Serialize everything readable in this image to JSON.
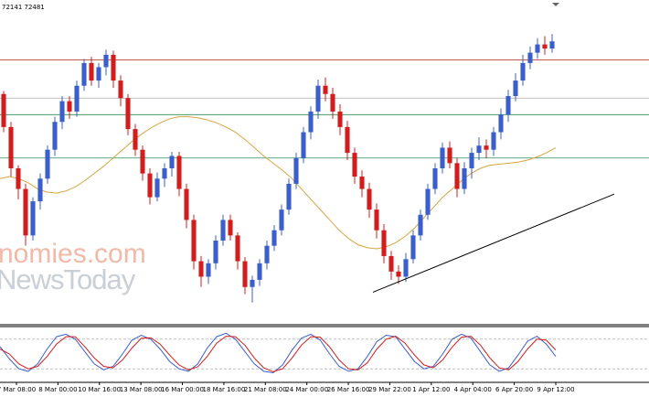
{
  "header_text": "72141 72481",
  "watermark": {
    "line1": "nomies.com",
    "line2": "NewsToday"
  },
  "colors": {
    "bull": "#3a5fcd",
    "bear": "#d41c1c",
    "ma": "#d9a441",
    "resistance": "#b22222",
    "support": "#2e8b57",
    "gray_level": "#a9a9a9",
    "trendline": "#000000",
    "stoch_main": "#3a5fcd",
    "stoch_signal": "#d41c1c"
  },
  "chart_data": {
    "type": "candlestick",
    "x_ticks": [
      "7 Mar 08:00",
      "8 Mar 00:00",
      "10 Mar 16:00",
      "13 Mar 08:00",
      "16 Mar 00:00",
      "18 Mar 16:00",
      "21 Mar 08:00",
      "24 Mar 00:00",
      "26 Mar 16:00",
      "29 Mar 22:00",
      "1 Apr 12:00",
      "4 Apr 04:00",
      "6 Apr 20:00",
      "9 Apr 12:00"
    ],
    "candles": [
      [
        232,
        200,
        235,
        195
      ],
      [
        200,
        160,
        205,
        152
      ],
      [
        160,
        140,
        163,
        130
      ],
      [
        140,
        95,
        145,
        85
      ],
      [
        95,
        128,
        132,
        90
      ],
      [
        128,
        150,
        155,
        120
      ],
      [
        150,
        178,
        182,
        145
      ],
      [
        178,
        205,
        210,
        172
      ],
      [
        205,
        225,
        230,
        198
      ],
      [
        225,
        215,
        230,
        208
      ],
      [
        215,
        240,
        245,
        210
      ],
      [
        240,
        262,
        266,
        235
      ],
      [
        262,
        245,
        268,
        240
      ],
      [
        245,
        258,
        262,
        238
      ],
      [
        258,
        270,
        275,
        250
      ],
      [
        270,
        245,
        274,
        238
      ],
      [
        245,
        228,
        250,
        220
      ],
      [
        228,
        198,
        232,
        192
      ],
      [
        198,
        178,
        203,
        172
      ],
      [
        178,
        155,
        182,
        148
      ],
      [
        155,
        132,
        160,
        125
      ],
      [
        132,
        150,
        156,
        128
      ],
      [
        150,
        160,
        165,
        142
      ],
      [
        160,
        172,
        176,
        152
      ],
      [
        172,
        140,
        176,
        133
      ],
      [
        140,
        110,
        145,
        102
      ],
      [
        110,
        70,
        115,
        62
      ],
      [
        70,
        55,
        75,
        45
      ],
      [
        55,
        68,
        72,
        48
      ],
      [
        68,
        90,
        95,
        62
      ],
      [
        90,
        110,
        115,
        85
      ],
      [
        110,
        95,
        115,
        90
      ],
      [
        95,
        70,
        98,
        62
      ],
      [
        70,
        45,
        74,
        38
      ],
      [
        45,
        52,
        56,
        30
      ],
      [
        52,
        68,
        72,
        46
      ],
      [
        68,
        85,
        90,
        62
      ],
      [
        85,
        100,
        105,
        80
      ],
      [
        100,
        120,
        125,
        95
      ],
      [
        120,
        145,
        150,
        115
      ],
      [
        145,
        170,
        175,
        140
      ],
      [
        170,
        195,
        200,
        165
      ],
      [
        195,
        215,
        220,
        188
      ],
      [
        215,
        240,
        246,
        208
      ],
      [
        240,
        232,
        248,
        225
      ],
      [
        232,
        215,
        238,
        208
      ],
      [
        215,
        200,
        222,
        192
      ],
      [
        200,
        175,
        206,
        168
      ],
      [
        175,
        152,
        180,
        145
      ],
      [
        152,
        140,
        158,
        132
      ],
      [
        140,
        120,
        146,
        112
      ],
      [
        120,
        100,
        126,
        92
      ],
      [
        100,
        75,
        106,
        68
      ],
      [
        75,
        60,
        80,
        52
      ],
      [
        60,
        55,
        66,
        48
      ],
      [
        55,
        72,
        78,
        50
      ],
      [
        72,
        95,
        100,
        68
      ],
      [
        95,
        115,
        120,
        90
      ],
      [
        115,
        140,
        145,
        110
      ],
      [
        140,
        160,
        165,
        135
      ],
      [
        160,
        180,
        185,
        155
      ],
      [
        180,
        165,
        186,
        160
      ],
      [
        165,
        140,
        170,
        132
      ],
      [
        140,
        160,
        166,
        135
      ],
      [
        160,
        175,
        180,
        150
      ],
      [
        175,
        182,
        190,
        168
      ],
      [
        182,
        178,
        188,
        170
      ],
      [
        178,
        195,
        200,
        172
      ],
      [
        195,
        212,
        218,
        188
      ],
      [
        212,
        230,
        236,
        205
      ],
      [
        230,
        245,
        252,
        225
      ],
      [
        245,
        262,
        270,
        240
      ],
      [
        262,
        272,
        278,
        256
      ],
      [
        272,
        280,
        286,
        266
      ],
      [
        280,
        276,
        288,
        270
      ],
      [
        276,
        283,
        290,
        272
      ]
    ],
    "moving_average": [
      150,
      152,
      150,
      146,
      140,
      137,
      136,
      138,
      142,
      148,
      155,
      162,
      170,
      178,
      186,
      193,
      199,
      204,
      208,
      210,
      210,
      209,
      207,
      204,
      200,
      195,
      188,
      180,
      172,
      165,
      158,
      150,
      140,
      130,
      120,
      110,
      100,
      92,
      86,
      83,
      82,
      84,
      88,
      94,
      102,
      112,
      122,
      132,
      140,
      148,
      155,
      160,
      163,
      164,
      165,
      166,
      168,
      171,
      175,
      180
    ],
    "levels": [
      {
        "value": 265,
        "color": "resistance"
      },
      {
        "value": 228,
        "color": "gray_level"
      },
      {
        "value": 212,
        "color": "support"
      },
      {
        "value": 170,
        "color": "support"
      }
    ],
    "trendline": [
      [
        0.0,
        40
      ],
      [
        1.0,
        135
      ]
    ],
    "ylim": [
      20,
      300
    ],
    "stochastic": {
      "main": [
        65,
        40,
        20,
        15,
        30,
        60,
        85,
        90,
        80,
        55,
        30,
        18,
        25,
        50,
        78,
        88,
        80,
        60,
        35,
        20,
        15,
        30,
        62,
        85,
        92,
        80,
        55,
        30,
        15,
        12,
        28,
        58,
        82,
        90,
        78,
        50,
        25,
        15,
        20,
        45,
        75,
        88,
        85,
        60,
        35,
        20,
        25,
        50,
        80,
        90,
        82,
        55,
        28,
        15,
        22,
        48,
        76,
        86,
        70,
        45
      ],
      "signal": [
        60,
        50,
        30,
        20,
        25,
        45,
        70,
        85,
        85,
        65,
        42,
        25,
        22,
        38,
        62,
        82,
        83,
        70,
        48,
        28,
        18,
        24,
        45,
        72,
        86,
        85,
        68,
        42,
        22,
        14,
        20,
        42,
        68,
        85,
        84,
        64,
        38,
        20,
        18,
        32,
        60,
        80,
        86,
        72,
        48,
        28,
        22,
        38,
        64,
        84,
        86,
        68,
        42,
        22,
        18,
        35,
        60,
        80,
        78,
        58
      ],
      "ylim": [
        0,
        100
      ],
      "levels": [
        20,
        80
      ]
    }
  }
}
